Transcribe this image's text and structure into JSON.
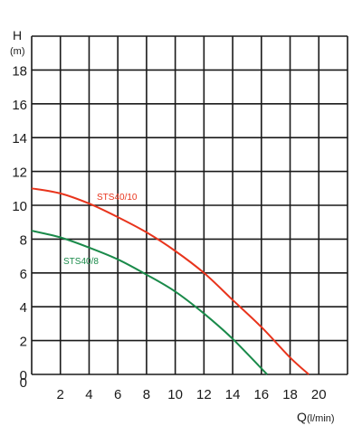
{
  "chart_data": {
    "type": "line",
    "xlabel": "Q",
    "xunit": "(l/min)",
    "ylabel": "H",
    "yunit": "(m)",
    "xlim": [
      0,
      22
    ],
    "ylim": [
      0,
      20
    ],
    "x_ticks": [
      "0",
      "2",
      "4",
      "6",
      "8",
      "10",
      "12",
      "14",
      "16",
      "18",
      "20"
    ],
    "y_ticks": [
      "0",
      "2",
      "4",
      "6",
      "8",
      "10",
      "12",
      "14",
      "16",
      "18"
    ],
    "grid": true,
    "series": [
      {
        "name": "STS40/10",
        "color": "#e8341c",
        "x": [
          0,
          2,
          4,
          6,
          8,
          10,
          12,
          14,
          16,
          18,
          19.3
        ],
        "y": [
          11.0,
          10.7,
          10.1,
          9.3,
          8.4,
          7.3,
          6.0,
          4.4,
          2.8,
          1.0,
          0
        ]
      },
      {
        "name": "STS40/8",
        "color": "#1a8a4a",
        "x": [
          0,
          2,
          4,
          6,
          8,
          10,
          12,
          14,
          16.4
        ],
        "y": [
          8.5,
          8.1,
          7.5,
          6.8,
          5.9,
          4.9,
          3.6,
          2.1,
          0
        ]
      }
    ]
  }
}
